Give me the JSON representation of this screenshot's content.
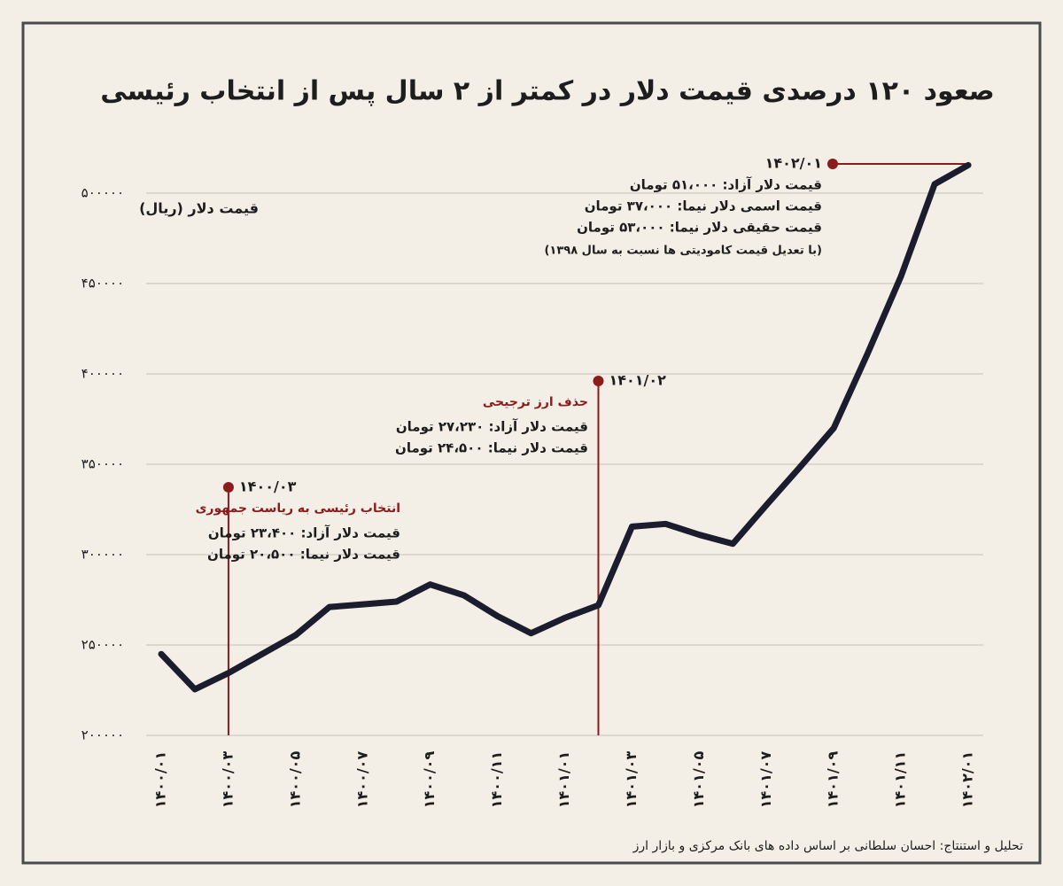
{
  "chart_data": {
    "type": "line",
    "title": "صعود ۱۲۰ درصدی قیمت دلار در کمتر از ۲ سال پس از انتخاب رئیسی",
    "y_label": "قیمت دلار (ریال)",
    "source": "تحلیل و استنتاج: احسان سلطانی بر اساس داده های بانک مرکزی و بازار ارز",
    "categories": [
      "۱۴۰۰/۰۱",
      null,
      "۱۴۰۰/۰۳",
      null,
      "۱۴۰۰/۰۵",
      null,
      "۱۴۰۰/۰۷",
      null,
      "۱۴۰۰/۰۹",
      null,
      "۱۴۰۰/۱۱",
      null,
      "۱۴۰۱/۰۱",
      null,
      "۱۴۰۱/۰۳",
      null,
      "۱۴۰۱/۰۵",
      null,
      "۱۴۰۱/۰۷",
      null,
      "۱۴۰۱/۰۹",
      null,
      "۱۴۰۱/۱۱",
      null,
      "۱۴۰۲/۰۱"
    ],
    "series": [
      {
        "color": "#1b1c2e",
        "values": [
          245000,
          225500,
          234500,
          245000,
          255500,
          271000,
          272500,
          274000,
          283500,
          277500,
          266000,
          256500,
          265000,
          272000,
          315500,
          317000,
          311000,
          306000,
          327500,
          348500,
          370000,
          411000,
          454000,
          505000,
          515500
        ]
      }
    ],
    "ylim": [
      200000,
      525000
    ],
    "yticks": [
      {
        "value": 200000,
        "label": "۲۰۰۰۰۰"
      },
      {
        "value": 250000,
        "label": "۲۵۰۰۰۰"
      },
      {
        "value": 300000,
        "label": "۳۰۰۰۰۰"
      },
      {
        "value": 350000,
        "label": "۳۵۰۰۰۰"
      },
      {
        "value": 400000,
        "label": "۴۰۰۰۰۰"
      },
      {
        "value": 450000,
        "label": "۴۵۰۰۰۰"
      },
      {
        "value": 500000,
        "label": "۵۰۰۰۰۰"
      }
    ],
    "grid": true,
    "annotation_color": "#8b1c1c",
    "annotations": [
      {
        "date": "۱۴۰۰/۰۳",
        "subtitle": "انتخاب رئیسی به ریاست جمهوری",
        "lines": [
          "قیمت دلار آزاد: ۲۳،۴۰۰ تومان",
          "قیمت دلار نیما: ۲۰،۵۰۰ تومان"
        ]
      },
      {
        "date": "۱۴۰۱/۰۲",
        "subtitle": "حذف ارز ترجیحی",
        "lines": [
          "قیمت دلار آزاد: ۲۷،۲۳۰ تومان",
          "قیمت دلار نیما: ۲۴،۵۰۰ تومان"
        ]
      },
      {
        "date": "۱۴۰۲/۰۱",
        "lines": [
          "قیمت دلار آزاد: ۵۱،۰۰۰ تومان",
          "قیمت اسمی دلار نیما: ۳۷،۰۰۰ تومان",
          "قیمت حقیقی دلار نیما: ۵۳،۰۰۰ تومان",
          "(با تعدیل قیمت کامودیتی ها نسبت به سال ۱۳۹۸)"
        ]
      }
    ]
  }
}
